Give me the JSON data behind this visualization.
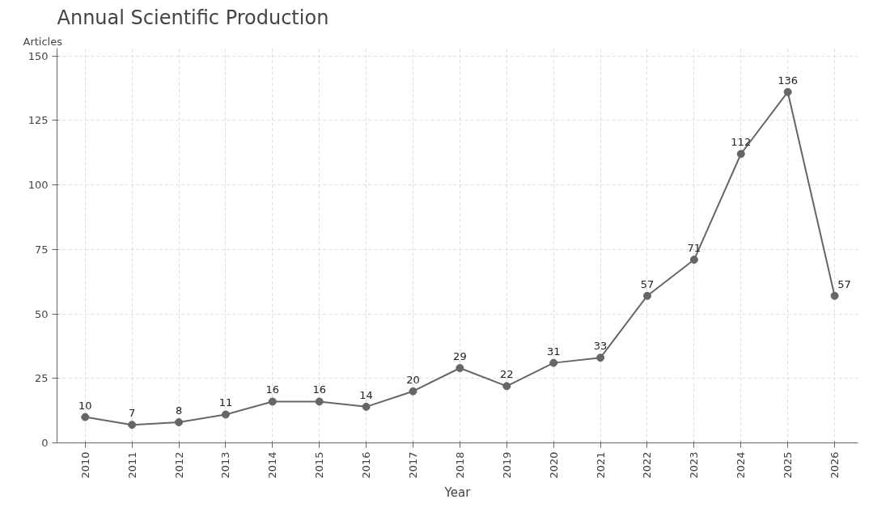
{
  "chart_data": {
    "type": "line",
    "title": "Annual Scientific Production",
    "xlabel": "Year",
    "ylabel": "Articles",
    "categories": [
      "2010",
      "2011",
      "2012",
      "2013",
      "2014",
      "2015",
      "2016",
      "2017",
      "2018",
      "2019",
      "2020",
      "2021",
      "2022",
      "2023",
      "2024",
      "2025",
      "2026"
    ],
    "series": [
      {
        "color": "#666666",
        "values": [
          10,
          7,
          8,
          11,
          16,
          16,
          14,
          20,
          29,
          22,
          31,
          33,
          57,
          71,
          112,
          136,
          57
        ]
      }
    ],
    "ylim": [
      0,
      153
    ],
    "yticks": [
      0,
      25,
      50,
      75,
      100,
      125,
      150
    ],
    "grid": true,
    "marker": "circle",
    "line_style": "solid",
    "data_labels": true
  }
}
